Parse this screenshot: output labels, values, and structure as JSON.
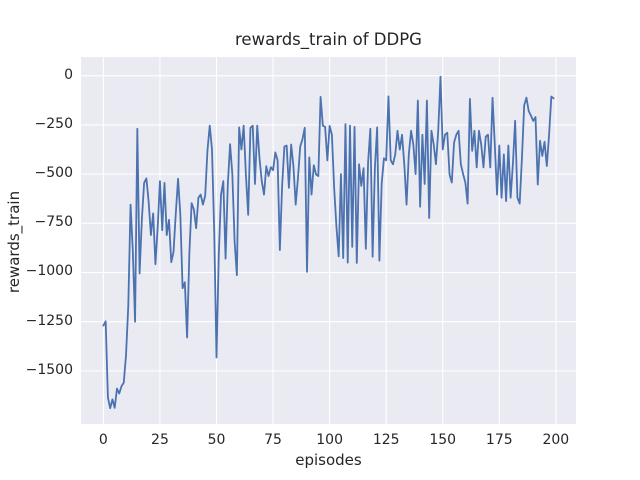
{
  "figure": {
    "background": "#ffffff",
    "axes_background": "#eaeaf2",
    "grid_color": "#ffffff",
    "text_color": "#262626"
  },
  "chart_data": {
    "type": "line",
    "title": "rewards_train of DDPG",
    "xlabel": "episodes",
    "ylabel": "rewards_train",
    "grid": true,
    "legend": "none",
    "xlim": [
      -9.9,
      208.9
    ],
    "ylim": [
      -1770,
      95
    ],
    "xticks": {
      "values": [
        0,
        25,
        50,
        75,
        100,
        125,
        150,
        175,
        200
      ],
      "labels": [
        "0",
        "25",
        "50",
        "75",
        "100",
        "125",
        "150",
        "175",
        "200"
      ]
    },
    "yticks": {
      "values": [
        0,
        -250,
        -500,
        -750,
        -1000,
        -1250,
        -1500
      ],
      "labels": [
        "0",
        "−250",
        "−500",
        "−750",
        "−1000",
        "−1250",
        "−1500"
      ]
    },
    "series": [
      {
        "name": "rewards_train",
        "color": "#4c72b0",
        "x_start": 0,
        "x_step": 1,
        "values": [
          -1270,
          -1248,
          -1635,
          -1690,
          -1645,
          -1688,
          -1590,
          -1615,
          -1578,
          -1560,
          -1420,
          -1170,
          -655,
          -890,
          -1250,
          -270,
          -1005,
          -732,
          -545,
          -522,
          -640,
          -810,
          -700,
          -958,
          -770,
          -536,
          -785,
          -545,
          -810,
          -732,
          -948,
          -895,
          -700,
          -524,
          -705,
          -1080,
          -1050,
          -1330,
          -900,
          -648,
          -680,
          -775,
          -620,
          -604,
          -655,
          -610,
          -380,
          -254,
          -375,
          -800,
          -1432,
          -911,
          -604,
          -536,
          -930,
          -550,
          -348,
          -502,
          -843,
          -1014,
          -263,
          -375,
          -254,
          -505,
          -707,
          -265,
          -254,
          -550,
          -254,
          -420,
          -536,
          -604,
          -460,
          -510,
          -465,
          -480,
          -390,
          -430,
          -886,
          -560,
          -360,
          -355,
          -570,
          -350,
          -460,
          -655,
          -520,
          -360,
          -323,
          -265,
          -997,
          -415,
          -604,
          -455,
          -502,
          -510,
          -108,
          -254,
          -260,
          -430,
          -255,
          -300,
          -570,
          -766,
          -918,
          -500,
          -927,
          -246,
          -950,
          -254,
          -870,
          -260,
          -952,
          -450,
          -560,
          -470,
          -880,
          -440,
          -270,
          -920,
          -470,
          -263,
          -940,
          -550,
          -420,
          -430,
          -105,
          -430,
          -450,
          -400,
          -280,
          -375,
          -300,
          -450,
          -655,
          -400,
          -280,
          -350,
          -500,
          -126,
          -666,
          -300,
          -550,
          -126,
          -723,
          -280,
          -350,
          -450,
          -280,
          -5,
          -375,
          -300,
          -290,
          -502,
          -543,
          -340,
          -300,
          -280,
          -450,
          -500,
          -543,
          -650,
          -118,
          -382,
          -280,
          -466,
          -280,
          -350,
          -466,
          -310,
          -300,
          -466,
          -112,
          -350,
          -604,
          -355,
          -620,
          -400,
          -637,
          -355,
          -620,
          -450,
          -229,
          -620,
          -650,
          -420,
          -150,
          -112,
          -180,
          -203,
          -230,
          -210,
          -553,
          -331,
          -408,
          -336,
          -459,
          -300,
          -106,
          -115
        ]
      }
    ]
  }
}
